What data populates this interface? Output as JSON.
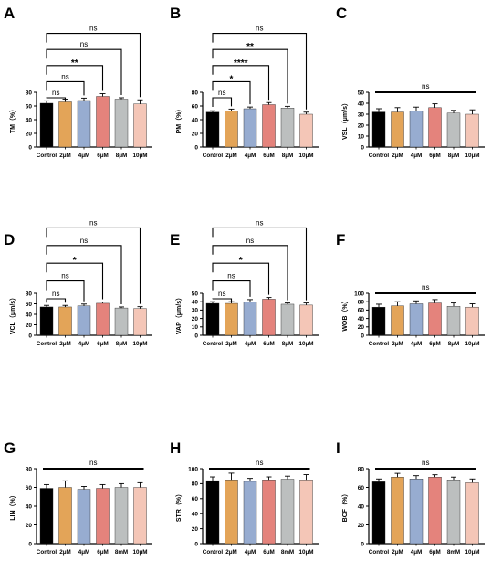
{
  "colors": {
    "bars": [
      "#000000",
      "#e3a458",
      "#97acd0",
      "#e4837c",
      "#bcbfbf",
      "#f4c6b7"
    ],
    "axis": "#000000",
    "bracket": "#000000"
  },
  "chart_data": [
    {
      "panel": "A",
      "type": "bar",
      "categories": [
        "Control",
        "2μM",
        "4μM",
        "6μM",
        "8μM",
        "10μM"
      ],
      "values": [
        64,
        66,
        68,
        74,
        70,
        63
      ],
      "errors": [
        3.5,
        4,
        3.5,
        4,
        2,
        6
      ],
      "ylabel": "TM（%）",
      "ylim": [
        0,
        80
      ],
      "yticks": [
        0,
        20,
        40,
        60,
        80
      ],
      "comparisons": [
        {
          "from": 0,
          "to": 1,
          "label": "ns"
        },
        {
          "from": 0,
          "to": 2,
          "label": "ns"
        },
        {
          "from": 0,
          "to": 3,
          "label": "**"
        },
        {
          "from": 0,
          "to": 4,
          "label": "ns"
        },
        {
          "from": 0,
          "to": 5,
          "label": "ns"
        }
      ]
    },
    {
      "panel": "B",
      "type": "bar",
      "categories": [
        "Control",
        "2μM",
        "4μM",
        "6μM",
        "8μM",
        "10μM"
      ],
      "values": [
        51,
        53,
        56,
        62,
        57,
        48
      ],
      "errors": [
        2,
        2.5,
        2.5,
        3,
        2.5,
        3
      ],
      "ylabel": "PM（%）",
      "ylim": [
        0,
        80
      ],
      "yticks": [
        0,
        20,
        40,
        60,
        80
      ],
      "comparisons": [
        {
          "from": 0,
          "to": 1,
          "label": "ns"
        },
        {
          "from": 0,
          "to": 2,
          "label": "*"
        },
        {
          "from": 0,
          "to": 3,
          "label": "****"
        },
        {
          "from": 0,
          "to": 4,
          "label": "**"
        },
        {
          "from": 0,
          "to": 5,
          "label": "ns"
        }
      ]
    },
    {
      "panel": "C",
      "type": "bar",
      "categories": [
        "Control",
        "2μM",
        "4μM",
        "6μM",
        "8μM",
        "10μM"
      ],
      "values": [
        32,
        32,
        33,
        36,
        31,
        30
      ],
      "errors": [
        3,
        4,
        3.5,
        3.5,
        2.5,
        4
      ],
      "ylabel": "VSL（μm/s）",
      "ylim": [
        0,
        50
      ],
      "yticks": [
        0,
        10,
        20,
        30,
        40,
        50
      ],
      "overall": "ns"
    },
    {
      "panel": "D",
      "type": "bar",
      "categories": [
        "Control",
        "2μM",
        "4μM",
        "6μM",
        "8μM",
        "10μM"
      ],
      "values": [
        54,
        54,
        56,
        61,
        52,
        51
      ],
      "errors": [
        3,
        3,
        3.5,
        2.5,
        2,
        3.5
      ],
      "ylabel": "VCL（μm/s）",
      "ylim": [
        0,
        80
      ],
      "yticks": [
        0,
        20,
        40,
        60,
        80
      ],
      "comparisons": [
        {
          "from": 0,
          "to": 1,
          "label": "ns"
        },
        {
          "from": 0,
          "to": 2,
          "label": "ns"
        },
        {
          "from": 0,
          "to": 3,
          "label": "*"
        },
        {
          "from": 0,
          "to": 4,
          "label": "ns"
        },
        {
          "from": 0,
          "to": 5,
          "label": "ns"
        }
      ]
    },
    {
      "panel": "E",
      "type": "bar",
      "categories": [
        "Control",
        "2μM",
        "4μM",
        "6μM",
        "8μM",
        "10μM"
      ],
      "values": [
        38,
        38,
        40,
        43,
        37,
        36
      ],
      "errors": [
        2,
        2,
        2.5,
        2,
        1.5,
        2.5
      ],
      "ylabel": "VAP（μm/s）",
      "ylim": [
        0,
        50
      ],
      "yticks": [
        0,
        10,
        20,
        30,
        40,
        50
      ],
      "comparisons": [
        {
          "from": 0,
          "to": 1,
          "label": "ns"
        },
        {
          "from": 0,
          "to": 2,
          "label": "ns"
        },
        {
          "from": 0,
          "to": 3,
          "label": "*"
        },
        {
          "from": 0,
          "to": 4,
          "label": "ns"
        },
        {
          "from": 0,
          "to": 5,
          "label": "ns"
        }
      ]
    },
    {
      "panel": "F",
      "type": "bar",
      "categories": [
        "Control",
        "2μM",
        "4μM",
        "6μM",
        "8μM",
        "10μM"
      ],
      "values": [
        67,
        70,
        75,
        77,
        69,
        67
      ],
      "errors": [
        7,
        10,
        7,
        8,
        8,
        8
      ],
      "ylabel": "WOB（%）",
      "ylim": [
        0,
        100
      ],
      "yticks": [
        0,
        20,
        40,
        60,
        80,
        100
      ],
      "overall": "ns"
    },
    {
      "panel": "G",
      "type": "bar",
      "categories": [
        "Control",
        "2μM",
        "4μM",
        "6μM",
        "8mM",
        "10μM"
      ],
      "values": [
        59,
        60,
        58,
        59,
        60,
        60
      ],
      "errors": [
        4,
        7,
        3,
        4,
        4,
        5
      ],
      "ylabel": "LIN（%）",
      "ylim": [
        0,
        80
      ],
      "yticks": [
        0,
        20,
        40,
        60,
        80
      ],
      "overall": "ns"
    },
    {
      "panel": "H",
      "type": "bar",
      "categories": [
        "Control",
        "2μM",
        "4μM",
        "6μM",
        "8mM",
        "10μM"
      ],
      "values": [
        84,
        85,
        83,
        85,
        86,
        85
      ],
      "errors": [
        5,
        9,
        4,
        4,
        4,
        7
      ],
      "ylabel": "STR（%）",
      "ylim": [
        0,
        100
      ],
      "yticks": [
        0,
        20,
        40,
        60,
        80,
        100
      ],
      "overall": "ns"
    },
    {
      "panel": "I",
      "type": "bar",
      "categories": [
        "Control",
        "2μM",
        "4μM",
        "6μM",
        "8mM",
        "10μM"
      ],
      "values": [
        66,
        71,
        69,
        71,
        68,
        65
      ],
      "errors": [
        3,
        4,
        3.5,
        2.5,
        3,
        4
      ],
      "ylabel": "BCF（%）",
      "ylim": [
        0,
        80
      ],
      "yticks": [
        0,
        20,
        40,
        60,
        80
      ],
      "overall": "ns"
    }
  ]
}
